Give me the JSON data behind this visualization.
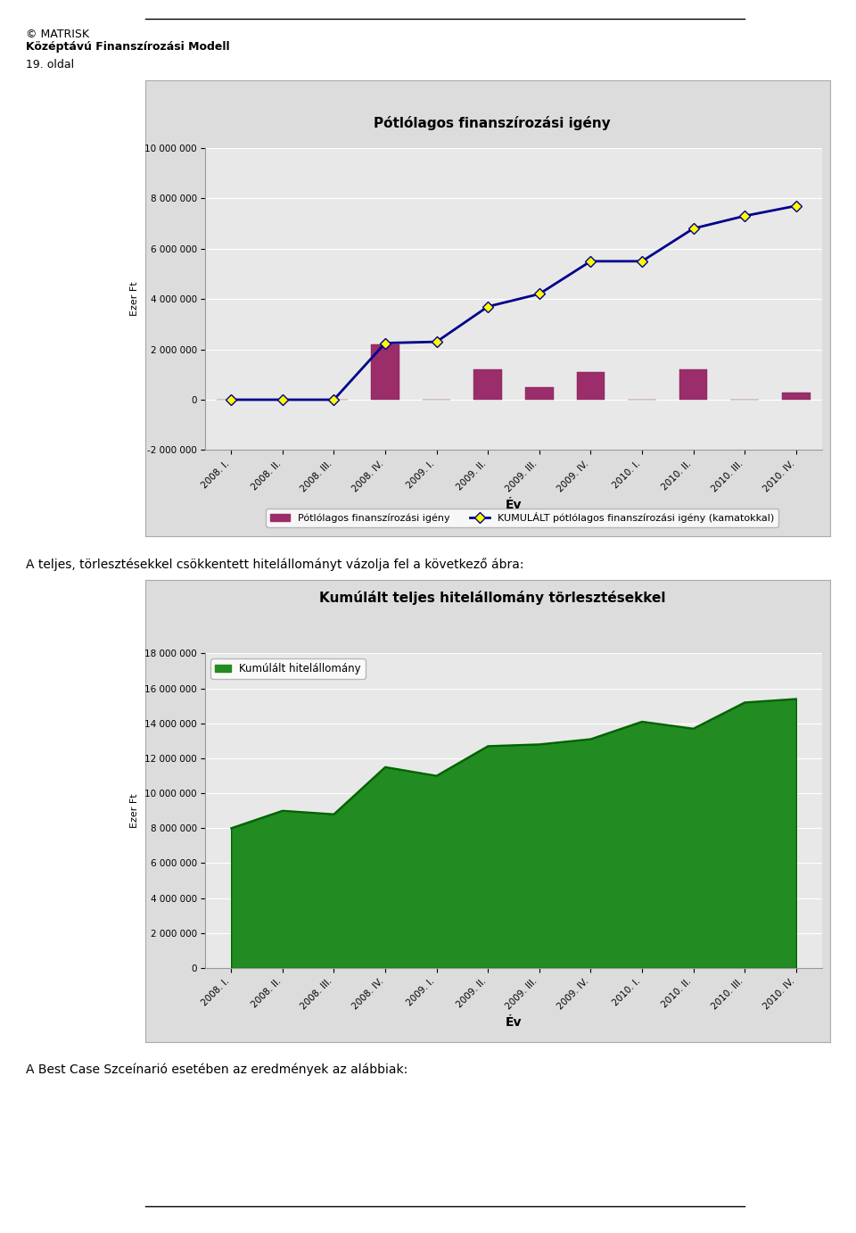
{
  "chart1": {
    "title": "Pótlólagos finanszírozási igény",
    "xlabel": "Év",
    "ylabel": "Ezer Ft",
    "ylim": [
      -2000000,
      10000000
    ],
    "yticks": [
      -2000000,
      0,
      2000000,
      4000000,
      6000000,
      8000000,
      10000000
    ],
    "categories": [
      "2008. I.",
      "2008. II.",
      "2008. III.",
      "2008. IV.",
      "2009. I.",
      "2009. II.",
      "2009. III.",
      "2009. IV.",
      "2010. I.",
      "2010. II.",
      "2010. III.",
      "2010. IV."
    ],
    "bar_values": [
      0,
      0,
      0,
      2200000,
      0,
      1200000,
      500000,
      1100000,
      0,
      1200000,
      0,
      300000
    ],
    "bar_color": "#9B2D6B",
    "line_values": [
      0,
      0,
      0,
      2250000,
      2300000,
      3700000,
      4200000,
      5500000,
      5500000,
      6800000,
      7300000,
      7700000
    ],
    "line_color": "#00008B",
    "line_marker": "D",
    "line_marker_color": "#FFFF00",
    "line_marker_edge": "#00008B",
    "legend_bar": "Pótlólagos finanszírozási igény",
    "legend_line": "KUMULÁLT pótlólagos finanszírozási igény (kamatokkal)",
    "bg_color": "#DCDCDC",
    "plot_bg": "#E8E8E8"
  },
  "chart2": {
    "title": "Kumúlált teljes hitelállomány törlesztésekkel",
    "xlabel": "Év",
    "ylabel": "Ezer Ft",
    "ylim": [
      0,
      18000000
    ],
    "yticks": [
      0,
      2000000,
      4000000,
      6000000,
      8000000,
      10000000,
      12000000,
      14000000,
      16000000,
      18000000
    ],
    "categories": [
      "2008. I.",
      "2008. II.",
      "2008. III.",
      "2008. IV.",
      "2009. I.",
      "2009. II.",
      "2009. III.",
      "2009. IV.",
      "2010. I.",
      "2010. II.",
      "2010. III.",
      "2010. IV."
    ],
    "area_values": [
      8000000,
      9000000,
      8800000,
      11500000,
      11000000,
      12700000,
      12800000,
      13100000,
      14100000,
      13700000,
      15200000,
      15400000
    ],
    "area_color": "#228B22",
    "area_edge": "#006400",
    "legend_label": "Kumúlált hitelállomány",
    "bg_color": "#DCDCDC",
    "plot_bg": "#E8E8E8"
  },
  "page_header": "© MATRISK",
  "page_subheader": "Középtávú Finanszírozási Modell",
  "page_number": "19. oldal",
  "middle_text": "A teljes, törlesztésekkel csökkentett hitelállományt vázolja fel a következő ábra:",
  "bottom_text": "A Best Case Szceínarió esetében az eredmények az alábbiak:"
}
